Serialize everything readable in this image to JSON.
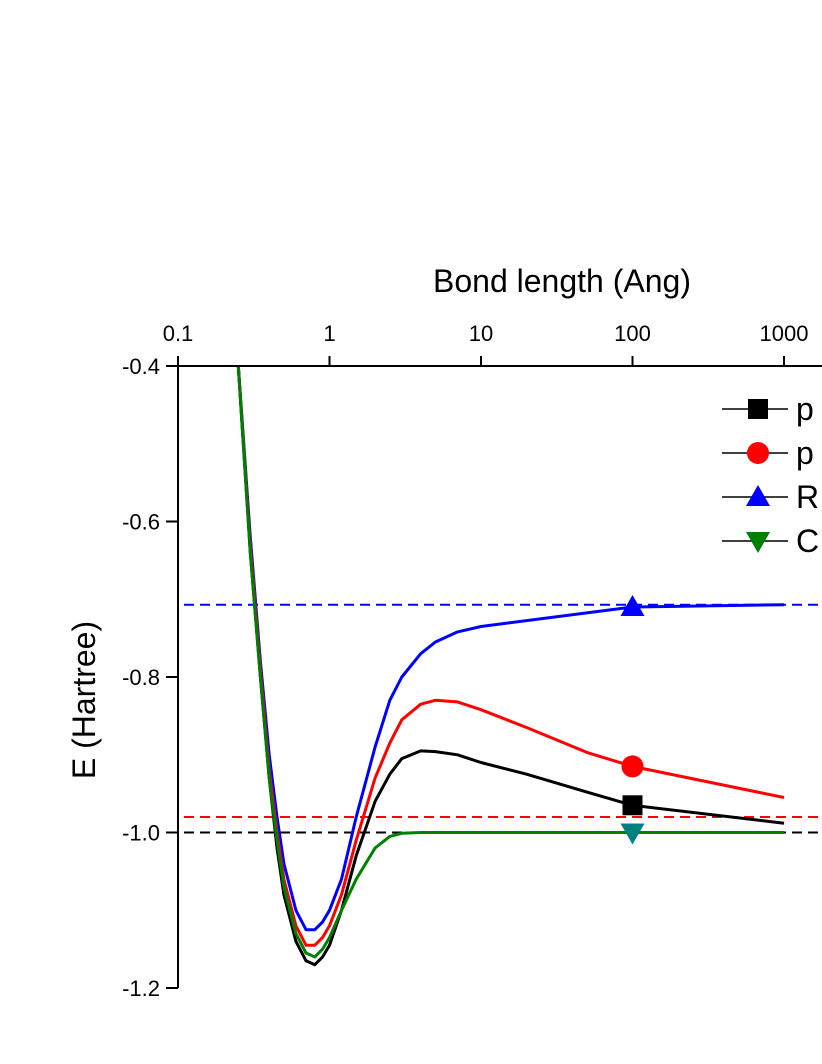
{
  "chart_data": {
    "type": "line",
    "title": "",
    "xlabel": "Bond length (Ang)",
    "ylabel": "E (Hartree)",
    "xscale": "log",
    "xlim": [
      0.1,
      1000
    ],
    "ylim": [
      -1.2,
      -0.4
    ],
    "xticks": [
      "0.1",
      "1",
      "10",
      "100",
      "1000"
    ],
    "yticks": [
      "-0.4",
      "-0.6",
      "-0.8",
      "-1.0",
      "-1.2"
    ],
    "x_axis_position": "top",
    "legend_position": "top-right",
    "legend": [
      {
        "label": "p",
        "marker": "square",
        "color": "#000000"
      },
      {
        "label": "p",
        "marker": "circle",
        "color": "#ff0000"
      },
      {
        "label": "R",
        "marker": "triangle-up",
        "color": "#0000ff"
      },
      {
        "label": "C",
        "marker": "triangle-down",
        "color": "#008000"
      }
    ],
    "reference_lines": [
      {
        "y": -0.707,
        "color": "#0000ff",
        "style": "dashed"
      },
      {
        "y": -0.98,
        "color": "#ff0000",
        "style": "dashed"
      },
      {
        "y": -1.0,
        "color": "#000000",
        "style": "dashed"
      }
    ],
    "series": [
      {
        "color": "#0000ff",
        "marker": "triangle-up",
        "marker_x": 100,
        "x": [
          0.25,
          0.3,
          0.35,
          0.4,
          0.45,
          0.5,
          0.6,
          0.7,
          0.8,
          0.9,
          1.0,
          1.2,
          1.5,
          2.0,
          2.5,
          3.0,
          4.0,
          5.0,
          7.0,
          10,
          100,
          1000
        ],
        "y": [
          -0.4,
          -0.62,
          -0.78,
          -0.9,
          -0.98,
          -1.04,
          -1.1,
          -1.125,
          -1.125,
          -1.115,
          -1.1,
          -1.06,
          -0.98,
          -0.89,
          -0.83,
          -0.8,
          -0.77,
          -0.755,
          -0.742,
          -0.735,
          -0.71,
          -0.707
        ]
      },
      {
        "color": "#ff0000",
        "marker": "circle",
        "marker_x": 100,
        "x": [
          0.25,
          0.3,
          0.35,
          0.4,
          0.45,
          0.5,
          0.6,
          0.7,
          0.8,
          0.9,
          1.0,
          1.2,
          1.5,
          2.0,
          2.5,
          3.0,
          4.0,
          5.0,
          7.0,
          10,
          20,
          50,
          100,
          1000
        ],
        "y": [
          -0.4,
          -0.63,
          -0.79,
          -0.92,
          -1.0,
          -1.06,
          -1.12,
          -1.145,
          -1.145,
          -1.135,
          -1.12,
          -1.08,
          -1.01,
          -0.93,
          -0.885,
          -0.855,
          -0.835,
          -0.83,
          -0.832,
          -0.842,
          -0.865,
          -0.897,
          -0.915,
          -0.955
        ]
      },
      {
        "color": "#000000",
        "marker": "square",
        "marker_x": 100,
        "x": [
          0.25,
          0.3,
          0.35,
          0.4,
          0.45,
          0.5,
          0.6,
          0.7,
          0.8,
          0.9,
          1.0,
          1.2,
          1.5,
          2.0,
          2.5,
          3.0,
          4.0,
          5.0,
          7.0,
          10,
          20,
          50,
          100,
          1000
        ],
        "y": [
          -0.4,
          -0.64,
          -0.8,
          -0.93,
          -1.02,
          -1.08,
          -1.14,
          -1.165,
          -1.17,
          -1.16,
          -1.145,
          -1.1,
          -1.03,
          -0.96,
          -0.925,
          -0.905,
          -0.895,
          -0.896,
          -0.9,
          -0.91,
          -0.925,
          -0.948,
          -0.965,
          -0.988
        ]
      },
      {
        "color": "#008000",
        "marker": "triangle-down",
        "marker_x": 100,
        "marker_color": "#008080",
        "x": [
          0.25,
          0.3,
          0.35,
          0.4,
          0.45,
          0.5,
          0.6,
          0.7,
          0.8,
          0.9,
          1.0,
          1.2,
          1.5,
          2.0,
          2.5,
          3.0,
          4.0,
          5.0,
          10,
          100,
          1000
        ],
        "y": [
          -0.4,
          -0.64,
          -0.8,
          -0.93,
          -1.01,
          -1.07,
          -1.13,
          -1.155,
          -1.16,
          -1.15,
          -1.135,
          -1.1,
          -1.06,
          -1.02,
          -1.005,
          -1.001,
          -1.0,
          -1.0,
          -1.0,
          -1.0,
          -1.0
        ]
      }
    ]
  }
}
